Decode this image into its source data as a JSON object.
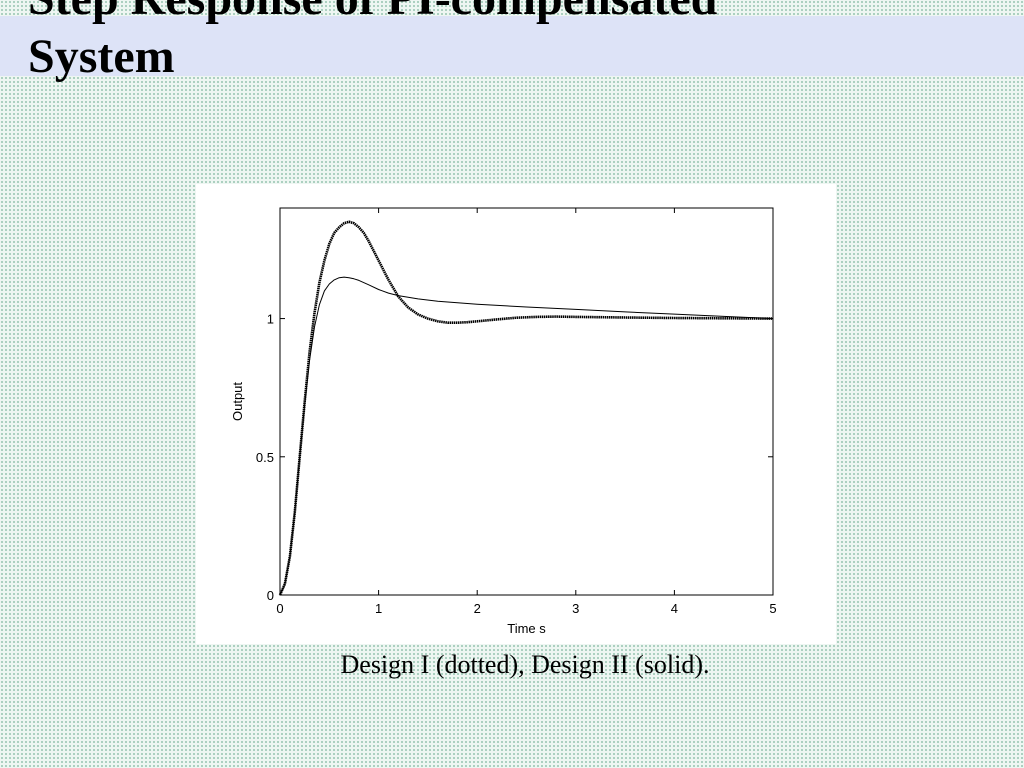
{
  "slide": {
    "title": "Step Response of PI-compensated\nSystem",
    "caption": "Design I (dotted), Design II (solid)."
  },
  "chart_data": {
    "type": "line",
    "title": "",
    "xlabel": "Time s",
    "ylabel": "Output",
    "xlim": [
      0,
      5
    ],
    "ylim": [
      0,
      1.4
    ],
    "xticks": [
      0,
      1,
      2,
      3,
      4,
      5
    ],
    "yticks": [
      0,
      0.5,
      1
    ],
    "grid": false,
    "colors": {
      "line": "#000000",
      "frame": "#000000"
    },
    "series": [
      {
        "style": "dotted",
        "x": [
          0,
          0.05,
          0.1,
          0.15,
          0.2,
          0.25,
          0.3,
          0.35,
          0.4,
          0.45,
          0.5,
          0.55,
          0.6,
          0.65,
          0.7,
          0.75,
          0.8,
          0.85,
          0.9,
          1.0,
          1.1,
          1.2,
          1.3,
          1.4,
          1.5,
          1.6,
          1.7,
          1.8,
          1.9,
          2.0,
          2.2,
          2.4,
          2.6,
          2.8,
          3.0,
          3.5,
          4.0,
          4.5,
          5.0
        ],
        "y": [
          0,
          0.04,
          0.14,
          0.3,
          0.5,
          0.7,
          0.88,
          1.02,
          1.13,
          1.21,
          1.27,
          1.31,
          1.33,
          1.345,
          1.35,
          1.345,
          1.33,
          1.31,
          1.28,
          1.21,
          1.14,
          1.08,
          1.04,
          1.015,
          1.0,
          0.99,
          0.985,
          0.985,
          0.987,
          0.99,
          0.997,
          1.003,
          1.006,
          1.007,
          1.006,
          1.004,
          1.002,
          1.001,
          1.0
        ]
      },
      {
        "style": "solid",
        "x": [
          0,
          0.05,
          0.1,
          0.15,
          0.2,
          0.25,
          0.3,
          0.35,
          0.4,
          0.45,
          0.5,
          0.55,
          0.6,
          0.65,
          0.7,
          0.75,
          0.8,
          0.9,
          1.0,
          1.1,
          1.2,
          1.4,
          1.6,
          1.8,
          2.0,
          2.5,
          3.0,
          3.5,
          4.0,
          4.5,
          5.0
        ],
        "y": [
          0,
          0.04,
          0.14,
          0.3,
          0.5,
          0.69,
          0.85,
          0.97,
          1.05,
          1.1,
          1.125,
          1.14,
          1.148,
          1.15,
          1.148,
          1.144,
          1.138,
          1.122,
          1.105,
          1.092,
          1.083,
          1.071,
          1.063,
          1.057,
          1.052,
          1.042,
          1.033,
          1.024,
          1.016,
          1.008,
          1.0
        ]
      }
    ]
  }
}
